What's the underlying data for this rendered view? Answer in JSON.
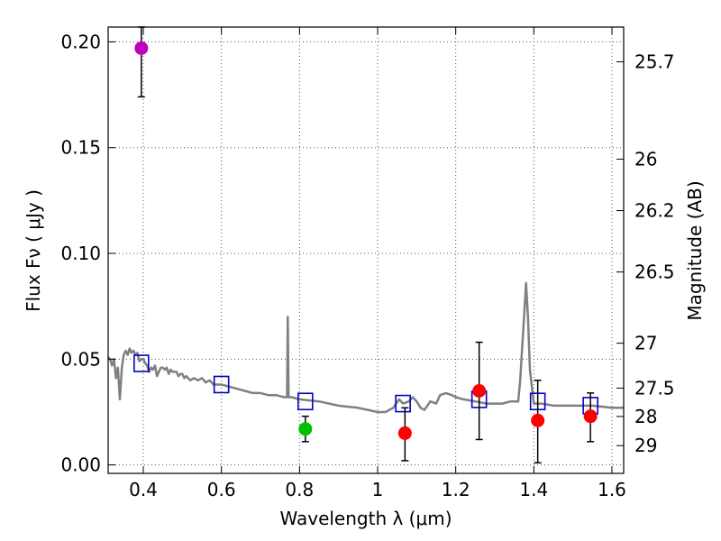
{
  "chart_data": {
    "type": "scatter",
    "xlabel": "Wavelength  λ (μm)",
    "ylabel": "Flux  Fν  ( μJy )",
    "ylabel_right": "Magnitude (AB)",
    "xlim": [
      0.31,
      1.63
    ],
    "ylim": [
      -0.004,
      0.207
    ],
    "grid": true,
    "x_ticks": [
      0.4,
      0.6,
      0.8,
      1.0,
      1.2,
      1.4,
      1.6
    ],
    "x_tick_labels": [
      "0.4",
      "0.6",
      "0.8",
      "1",
      "1.2",
      "1.4",
      "1.6"
    ],
    "y_ticks": [
      0.0,
      0.05,
      0.1,
      0.15,
      0.2
    ],
    "y_tick_labels": [
      "0.00",
      "0.05",
      "0.10",
      "0.15",
      "0.20"
    ],
    "mag_ticks": [
      25.7,
      26,
      26.2,
      26.5,
      27,
      27.5,
      28,
      29
    ],
    "mag_tick_labels": [
      "25.7",
      "26",
      "26.2",
      "26.5",
      "27",
      "27.5",
      "28",
      "29"
    ],
    "sed_model": {
      "color": "#808080",
      "x": [
        0.31,
        0.315,
        0.32,
        0.325,
        0.33,
        0.335,
        0.34,
        0.345,
        0.35,
        0.355,
        0.36,
        0.365,
        0.37,
        0.375,
        0.38,
        0.385,
        0.39,
        0.395,
        0.4,
        0.405,
        0.41,
        0.415,
        0.42,
        0.425,
        0.43,
        0.435,
        0.44,
        0.445,
        0.45,
        0.455,
        0.46,
        0.465,
        0.47,
        0.475,
        0.48,
        0.485,
        0.49,
        0.495,
        0.5,
        0.505,
        0.51,
        0.52,
        0.53,
        0.54,
        0.55,
        0.56,
        0.57,
        0.58,
        0.6,
        0.62,
        0.64,
        0.66,
        0.68,
        0.7,
        0.72,
        0.74,
        0.76,
        0.768,
        0.77,
        0.772,
        0.78,
        0.8,
        0.85,
        0.9,
        0.95,
        1.0,
        1.02,
        1.04,
        1.055,
        1.065,
        1.08,
        1.09,
        1.1,
        1.11,
        1.12,
        1.135,
        1.15,
        1.16,
        1.175,
        1.19,
        1.2,
        1.22,
        1.25,
        1.28,
        1.3,
        1.32,
        1.34,
        1.36,
        1.365,
        1.37,
        1.375,
        1.38,
        1.385,
        1.39,
        1.4,
        1.42,
        1.45,
        1.5,
        1.55,
        1.6,
        1.63
      ],
      "y": [
        0.051,
        0.05,
        0.047,
        0.05,
        0.041,
        0.046,
        0.031,
        0.046,
        0.052,
        0.054,
        0.052,
        0.055,
        0.053,
        0.054,
        0.052,
        0.053,
        0.049,
        0.05,
        0.05,
        0.048,
        0.047,
        0.044,
        0.046,
        0.045,
        0.047,
        0.042,
        0.044,
        0.046,
        0.046,
        0.045,
        0.046,
        0.043,
        0.045,
        0.044,
        0.044,
        0.044,
        0.042,
        0.043,
        0.043,
        0.041,
        0.042,
        0.04,
        0.041,
        0.04,
        0.041,
        0.039,
        0.04,
        0.038,
        0.038,
        0.037,
        0.036,
        0.035,
        0.034,
        0.034,
        0.033,
        0.033,
        0.032,
        0.032,
        0.07,
        0.032,
        0.032,
        0.031,
        0.03,
        0.028,
        0.027,
        0.025,
        0.025,
        0.027,
        0.031,
        0.029,
        0.03,
        0.032,
        0.03,
        0.027,
        0.026,
        0.03,
        0.029,
        0.033,
        0.034,
        0.033,
        0.032,
        0.031,
        0.03,
        0.029,
        0.029,
        0.029,
        0.03,
        0.03,
        0.04,
        0.055,
        0.07,
        0.086,
        0.07,
        0.045,
        0.029,
        0.029,
        0.028,
        0.028,
        0.028,
        0.027,
        0.027
      ]
    },
    "series": [
      {
        "marker": "square",
        "color": "#0000cc",
        "x": [
          0.395,
          0.6,
          0.815,
          1.065,
          1.26,
          1.41,
          1.545
        ],
        "y": [
          0.048,
          0.038,
          0.03,
          0.029,
          0.031,
          0.03,
          0.028
        ]
      },
      {
        "marker": "circle",
        "color": "#bf00bf",
        "x": [
          0.395
        ],
        "y": [
          0.197
        ],
        "yerr_low": [
          0.174
        ],
        "yerr_high": [
          0.207
        ]
      },
      {
        "marker": "circle",
        "color": "#00c000",
        "x": [
          0.815
        ],
        "y": [
          0.017
        ],
        "yerr_low": [
          0.011
        ],
        "yerr_high": [
          0.023
        ]
      },
      {
        "marker": "circle",
        "color": "#ff0000",
        "x": [
          1.07,
          1.26,
          1.41,
          1.545
        ],
        "y": [
          0.015,
          0.035,
          0.021,
          0.023
        ],
        "yerr_low": [
          0.002,
          0.012,
          0.001,
          0.011
        ],
        "yerr_high": [
          0.027,
          0.058,
          0.04,
          0.034
        ]
      }
    ]
  }
}
